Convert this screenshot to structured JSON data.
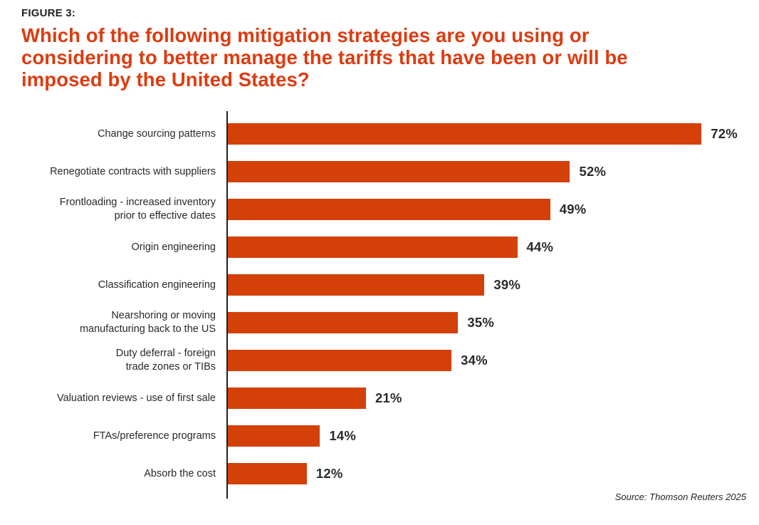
{
  "figure_label": "FIGURE 3:",
  "title": "Which of the following mitigation strategies are you using or\nconsidering to better manage the tariffs that have been or will be\nimposed by the United States?",
  "source": "Source: Thomson Reuters 2025",
  "colors": {
    "bar": "#D34008",
    "title_text": "#DC3C11",
    "text": "#29282A",
    "axis": "#231F20"
  },
  "chart_data": {
    "type": "bar",
    "orientation": "horizontal",
    "title": "Which of the following mitigation strategies are you using or considering to better manage the tariffs that have been or will be imposed by the United States?",
    "categories": [
      "Change sourcing patterns",
      "Renegotiate contracts with suppliers",
      "Frontloading - increased inventory\nprior to effective dates",
      "Origin engineering",
      "Classification engineering",
      "Nearshoring or moving\nmanufacturing back to the US",
      "Duty deferral - foreign\ntrade zones or TIBs",
      "Valuation reviews - use of first sale",
      "FTAs/preference programs",
      "Absorb the cost"
    ],
    "values": [
      72,
      52,
      49,
      44,
      39,
      35,
      34,
      21,
      14,
      12
    ],
    "value_suffix": "%",
    "value_labels": "end-of-bar",
    "xlim": [
      0,
      80
    ],
    "grid": false,
    "legend": "none",
    "source": "Source: Thomson Reuters 2025"
  }
}
